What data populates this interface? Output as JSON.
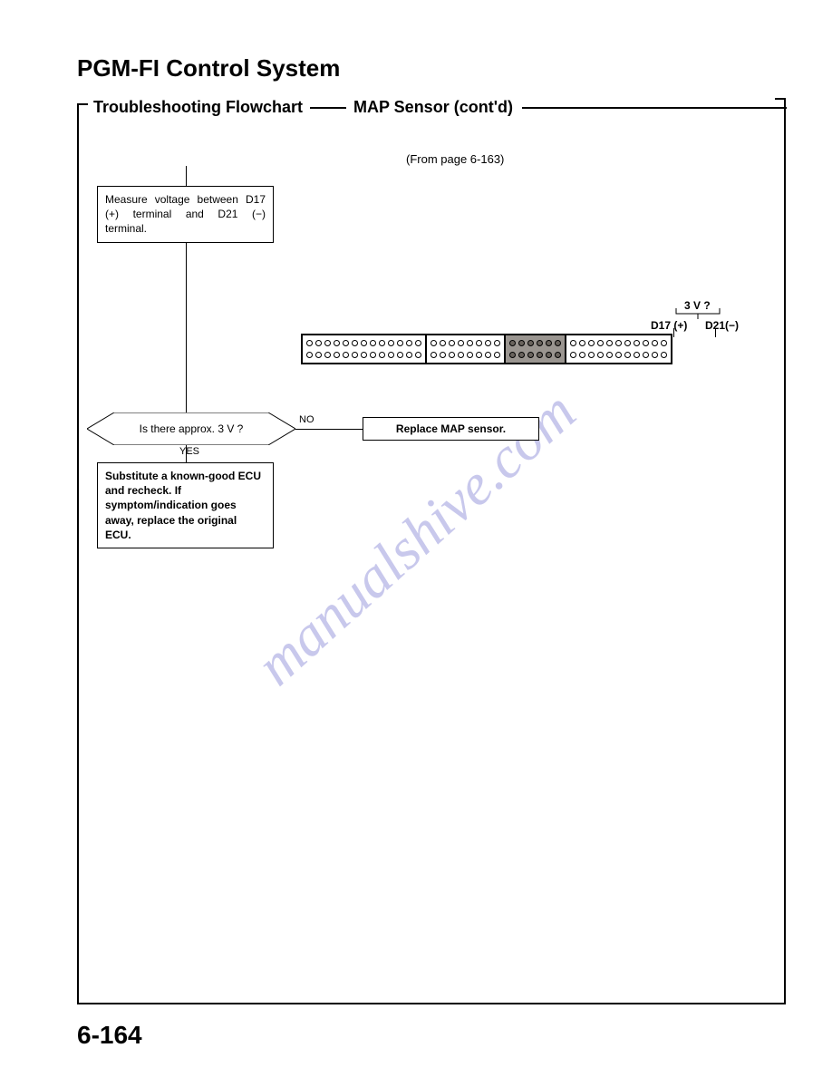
{
  "titles": {
    "main": "PGM-FI Control System",
    "sub_left": "Troubleshooting Flowchart",
    "sub_right": "MAP Sensor (cont'd)"
  },
  "from_page": "(From page 6-163)",
  "flow": {
    "measure_box": "Measure voltage between D17 (+) terminal and D21 (−) terminal.",
    "decision": "Is there approx. 3 V ?",
    "yes": "YES",
    "no": "NO",
    "replace_box": "Replace MAP sensor.",
    "substitute_box": "Substitute a known-good ECU and recheck. If symptom/indication goes away, replace the original ECU."
  },
  "connector": {
    "voltage_q": "3 V ?",
    "d17": "D17 (+)",
    "d21": "D21(−)",
    "blocks": [
      {
        "top_pins": 13,
        "bottom_pins": 13,
        "shaded": false
      },
      {
        "top_pins": 8,
        "bottom_pins": 8,
        "shaded": false
      },
      {
        "top_pins": 6,
        "bottom_pins": 6,
        "shaded": true
      },
      {
        "top_pins": 11,
        "bottom_pins": 11,
        "shaded": false
      }
    ]
  },
  "watermark": "manualshive.com",
  "page_number": "6-164",
  "colors": {
    "text": "#000000",
    "bg": "#ffffff",
    "shade": "#9a9590",
    "watermark": "rgba(96,96,200,0.35)"
  }
}
